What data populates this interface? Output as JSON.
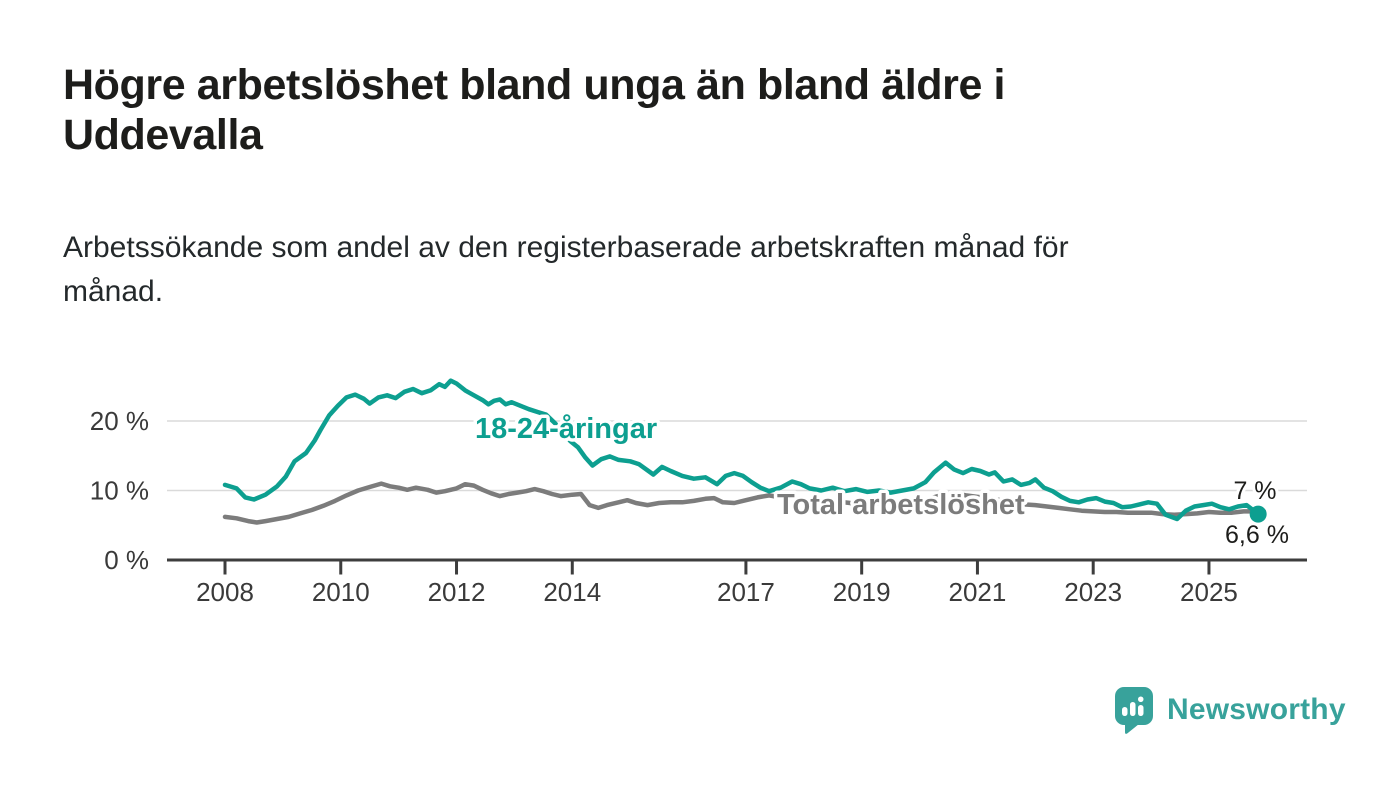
{
  "chart_data": {
    "type": "line",
    "title": "Högre arbetslöshet bland unga än bland äldre i\nUddevalla",
    "subtitle": "Arbetssökande som andel av den registerbaserade arbetskraften månad för\nmånad.",
    "x_axis": {
      "ticks": [
        2008,
        2010,
        2012,
        2014,
        2017,
        2019,
        2021,
        2023,
        2025
      ],
      "tick_labels": [
        "2008",
        "2010",
        "2012",
        "2014",
        "2017",
        "2019",
        "2021",
        "2023",
        "2025"
      ],
      "range": [
        2007.0,
        2026.7
      ]
    },
    "y_axis": {
      "ticks": [
        0,
        10,
        20
      ],
      "tick_labels": [
        "0 %",
        "10 %",
        "20 %"
      ],
      "range": [
        0,
        27
      ],
      "unit": "%"
    },
    "grid": {
      "on": true,
      "lines_at": [
        10,
        20
      ],
      "color": "#dadada"
    },
    "legend_position": "inline-labels-on-chart",
    "axis_color": "#3d3d3d",
    "series": [
      {
        "name": "Total arbetslöshet",
        "label": "Total arbetslöshet",
        "color": "#7c7c7c",
        "end_label": "7 %",
        "end_dot": false,
        "points": [
          [
            2008.0,
            6.2
          ],
          [
            2008.2,
            6.0
          ],
          [
            2008.4,
            5.6
          ],
          [
            2008.55,
            5.4
          ],
          [
            2008.7,
            5.6
          ],
          [
            2008.9,
            5.9
          ],
          [
            2009.1,
            6.2
          ],
          [
            2009.3,
            6.7
          ],
          [
            2009.5,
            7.2
          ],
          [
            2009.7,
            7.8
          ],
          [
            2009.9,
            8.5
          ],
          [
            2010.1,
            9.3
          ],
          [
            2010.3,
            10.0
          ],
          [
            2010.5,
            10.5
          ],
          [
            2010.7,
            11.0
          ],
          [
            2010.85,
            10.6
          ],
          [
            2011.0,
            10.4
          ],
          [
            2011.15,
            10.1
          ],
          [
            2011.3,
            10.4
          ],
          [
            2011.5,
            10.1
          ],
          [
            2011.65,
            9.7
          ],
          [
            2011.8,
            9.9
          ],
          [
            2012.0,
            10.3
          ],
          [
            2012.15,
            10.9
          ],
          [
            2012.3,
            10.7
          ],
          [
            2012.45,
            10.1
          ],
          [
            2012.6,
            9.6
          ],
          [
            2012.75,
            9.2
          ],
          [
            2012.9,
            9.5
          ],
          [
            2013.05,
            9.7
          ],
          [
            2013.2,
            9.9
          ],
          [
            2013.35,
            10.2
          ],
          [
            2013.5,
            9.9
          ],
          [
            2013.65,
            9.5
          ],
          [
            2013.8,
            9.2
          ],
          [
            2014.0,
            9.4
          ],
          [
            2014.15,
            9.5
          ],
          [
            2014.3,
            7.9
          ],
          [
            2014.45,
            7.5
          ],
          [
            2014.6,
            7.9
          ],
          [
            2014.8,
            8.3
          ],
          [
            2014.95,
            8.6
          ],
          [
            2015.1,
            8.2
          ],
          [
            2015.3,
            7.9
          ],
          [
            2015.5,
            8.2
          ],
          [
            2015.7,
            8.3
          ],
          [
            2015.9,
            8.3
          ],
          [
            2016.1,
            8.5
          ],
          [
            2016.3,
            8.8
          ],
          [
            2016.45,
            8.9
          ],
          [
            2016.6,
            8.3
          ],
          [
            2016.8,
            8.2
          ],
          [
            2017.0,
            8.6
          ],
          [
            2017.2,
            9.0
          ],
          [
            2017.4,
            9.3
          ],
          [
            2017.6,
            9.0
          ],
          [
            2017.8,
            8.8
          ],
          [
            2018.0,
            8.6
          ],
          [
            2018.2,
            8.4
          ],
          [
            2018.4,
            8.2
          ],
          [
            2018.6,
            8.4
          ],
          [
            2018.8,
            8.2
          ],
          [
            2019.0,
            8.0
          ],
          [
            2019.2,
            8.2
          ],
          [
            2019.4,
            8.0
          ],
          [
            2019.6,
            7.9
          ],
          [
            2019.8,
            8.1
          ],
          [
            2020.0,
            8.4
          ],
          [
            2020.2,
            8.9
          ],
          [
            2020.4,
            9.4
          ],
          [
            2020.6,
            9.6
          ],
          [
            2020.8,
            9.3
          ],
          [
            2021.0,
            9.1
          ],
          [
            2021.2,
            8.9
          ],
          [
            2021.4,
            8.6
          ],
          [
            2021.6,
            8.3
          ],
          [
            2021.8,
            8.0
          ],
          [
            2022.0,
            7.9
          ],
          [
            2022.2,
            7.7
          ],
          [
            2022.4,
            7.5
          ],
          [
            2022.6,
            7.3
          ],
          [
            2022.8,
            7.1
          ],
          [
            2023.0,
            7.0
          ],
          [
            2023.2,
            6.9
          ],
          [
            2023.4,
            6.9
          ],
          [
            2023.6,
            6.8
          ],
          [
            2023.8,
            6.8
          ],
          [
            2024.0,
            6.8
          ],
          [
            2024.2,
            6.6
          ],
          [
            2024.4,
            6.5
          ],
          [
            2024.6,
            6.6
          ],
          [
            2024.8,
            6.7
          ],
          [
            2025.0,
            6.9
          ],
          [
            2025.2,
            6.8
          ],
          [
            2025.4,
            6.8
          ],
          [
            2025.6,
            7.0
          ],
          [
            2025.95,
            7.0
          ]
        ]
      },
      {
        "name": "18-24-åringar",
        "label": "18-24-åringar",
        "color": "#0d9f90",
        "end_label": "6,6 %",
        "end_dot": true,
        "points": [
          [
            2008.0,
            10.8
          ],
          [
            2008.2,
            10.3
          ],
          [
            2008.35,
            9.0
          ],
          [
            2008.5,
            8.7
          ],
          [
            2008.7,
            9.4
          ],
          [
            2008.9,
            10.6
          ],
          [
            2009.05,
            12.0
          ],
          [
            2009.2,
            14.2
          ],
          [
            2009.4,
            15.4
          ],
          [
            2009.55,
            17.2
          ],
          [
            2009.65,
            18.7
          ],
          [
            2009.8,
            20.8
          ],
          [
            2009.95,
            22.2
          ],
          [
            2010.1,
            23.4
          ],
          [
            2010.25,
            23.8
          ],
          [
            2010.4,
            23.2
          ],
          [
            2010.5,
            22.5
          ],
          [
            2010.65,
            23.4
          ],
          [
            2010.8,
            23.7
          ],
          [
            2010.95,
            23.3
          ],
          [
            2011.1,
            24.2
          ],
          [
            2011.25,
            24.6
          ],
          [
            2011.4,
            24.0
          ],
          [
            2011.55,
            24.4
          ],
          [
            2011.7,
            25.3
          ],
          [
            2011.8,
            24.9
          ],
          [
            2011.9,
            25.8
          ],
          [
            2012.0,
            25.4
          ],
          [
            2012.15,
            24.4
          ],
          [
            2012.3,
            23.7
          ],
          [
            2012.45,
            23.0
          ],
          [
            2012.55,
            22.4
          ],
          [
            2012.65,
            22.9
          ],
          [
            2012.75,
            23.1
          ],
          [
            2012.85,
            22.4
          ],
          [
            2012.95,
            22.7
          ],
          [
            2013.1,
            22.2
          ],
          [
            2013.25,
            21.7
          ],
          [
            2013.4,
            21.3
          ],
          [
            2013.55,
            20.9
          ],
          [
            2013.7,
            19.7
          ],
          [
            2013.85,
            18.2
          ],
          [
            2013.97,
            17.1
          ],
          [
            2014.1,
            16.2
          ],
          [
            2014.22,
            14.8
          ],
          [
            2014.35,
            13.6
          ],
          [
            2014.5,
            14.5
          ],
          [
            2014.65,
            14.9
          ],
          [
            2014.8,
            14.4
          ],
          [
            2015.0,
            14.2
          ],
          [
            2015.15,
            13.8
          ],
          [
            2015.4,
            12.3
          ],
          [
            2015.55,
            13.4
          ],
          [
            2015.7,
            12.8
          ],
          [
            2015.9,
            12.1
          ],
          [
            2016.1,
            11.7
          ],
          [
            2016.3,
            11.9
          ],
          [
            2016.5,
            10.9
          ],
          [
            2016.65,
            12.1
          ],
          [
            2016.8,
            12.5
          ],
          [
            2016.95,
            12.1
          ],
          [
            2017.1,
            11.2
          ],
          [
            2017.25,
            10.4
          ],
          [
            2017.4,
            9.9
          ],
          [
            2017.6,
            10.4
          ],
          [
            2017.8,
            11.3
          ],
          [
            2017.95,
            10.9
          ],
          [
            2018.1,
            10.3
          ],
          [
            2018.3,
            10.0
          ],
          [
            2018.5,
            10.4
          ],
          [
            2018.7,
            9.9
          ],
          [
            2018.9,
            10.2
          ],
          [
            2019.1,
            9.8
          ],
          [
            2019.3,
            10.0
          ],
          [
            2019.5,
            9.7
          ],
          [
            2019.7,
            10.0
          ],
          [
            2019.9,
            10.3
          ],
          [
            2020.1,
            11.2
          ],
          [
            2020.25,
            12.6
          ],
          [
            2020.45,
            14.0
          ],
          [
            2020.6,
            13.0
          ],
          [
            2020.75,
            12.5
          ],
          [
            2020.9,
            13.1
          ],
          [
            2021.05,
            12.8
          ],
          [
            2021.2,
            12.3
          ],
          [
            2021.3,
            12.6
          ],
          [
            2021.45,
            11.3
          ],
          [
            2021.6,
            11.6
          ],
          [
            2021.75,
            10.8
          ],
          [
            2021.9,
            11.1
          ],
          [
            2022.0,
            11.6
          ],
          [
            2022.15,
            10.4
          ],
          [
            2022.3,
            9.9
          ],
          [
            2022.45,
            9.1
          ],
          [
            2022.6,
            8.5
          ],
          [
            2022.75,
            8.3
          ],
          [
            2022.9,
            8.7
          ],
          [
            2023.05,
            8.9
          ],
          [
            2023.2,
            8.4
          ],
          [
            2023.35,
            8.2
          ],
          [
            2023.5,
            7.6
          ],
          [
            2023.65,
            7.7
          ],
          [
            2023.8,
            8.0
          ],
          [
            2023.95,
            8.3
          ],
          [
            2024.1,
            8.1
          ],
          [
            2024.25,
            6.5
          ],
          [
            2024.45,
            5.9
          ],
          [
            2024.6,
            7.1
          ],
          [
            2024.75,
            7.7
          ],
          [
            2024.9,
            7.9
          ],
          [
            2025.05,
            8.1
          ],
          [
            2025.2,
            7.6
          ],
          [
            2025.35,
            7.3
          ],
          [
            2025.5,
            7.7
          ],
          [
            2025.65,
            7.9
          ],
          [
            2025.85,
            6.6
          ]
        ]
      }
    ]
  },
  "branding": {
    "name": "Newsworthy",
    "icon": "bar-chart-speech-bubble-icon",
    "color": "#38a29b"
  }
}
